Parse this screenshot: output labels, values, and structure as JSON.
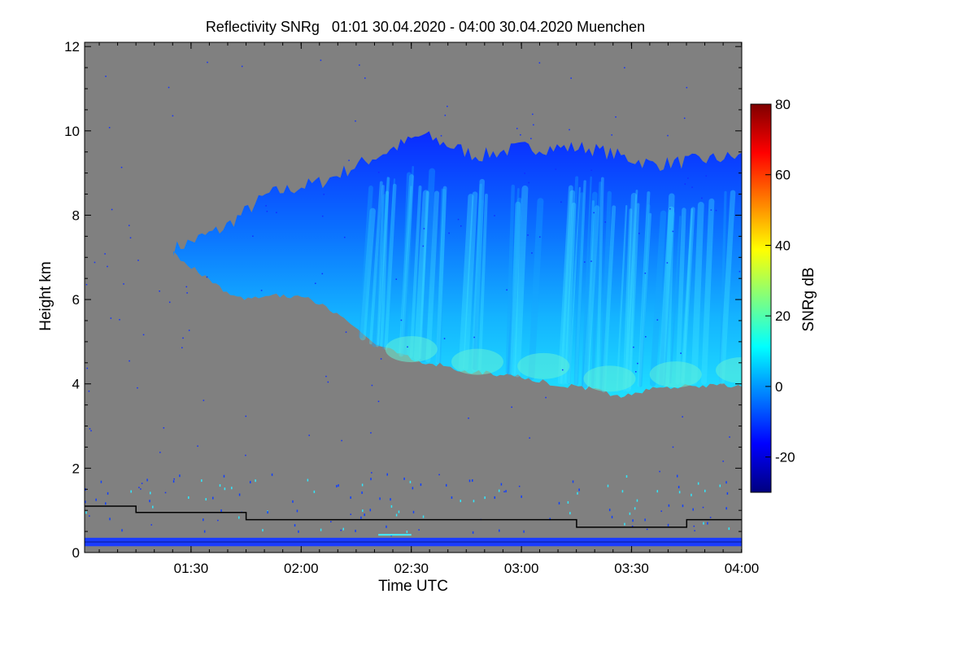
{
  "chart_data": {
    "type": "heatmap",
    "title": "Reflectivity SNRg   01:01 30.04.2020 - 04:00 30.04.2020 Muenchen",
    "xlabel": "Time UTC",
    "ylabel": "Height km",
    "xlim_hours": [
      1.0167,
      4.0
    ],
    "ylim": [
      0,
      12.1
    ],
    "x_ticks": [
      {
        "value": 1.5,
        "label": "01:30"
      },
      {
        "value": 2.0,
        "label": "02:00"
      },
      {
        "value": 2.5,
        "label": "02:30"
      },
      {
        "value": 3.0,
        "label": "03:00"
      },
      {
        "value": 3.5,
        "label": "03:30"
      },
      {
        "value": 4.0,
        "label": "04:00"
      }
    ],
    "y_ticks": [
      {
        "value": 0,
        "label": "0"
      },
      {
        "value": 2,
        "label": "2"
      },
      {
        "value": 4,
        "label": "4"
      },
      {
        "value": 6,
        "label": "6"
      },
      {
        "value": 8,
        "label": "8"
      },
      {
        "value": 10,
        "label": "10"
      },
      {
        "value": 12,
        "label": "12"
      }
    ],
    "colorbar": {
      "label": "SNRg dB",
      "range": [
        -30,
        80
      ],
      "ticks": [
        {
          "value": -20,
          "label": "-20"
        },
        {
          "value": 0,
          "label": "0"
        },
        {
          "value": 20,
          "label": "20"
        },
        {
          "value": 40,
          "label": "40"
        },
        {
          "value": 60,
          "label": "60"
        },
        {
          "value": 80,
          "label": "80"
        }
      ],
      "colors": [
        "#00007f",
        "#0000ff",
        "#007fff",
        "#00ffff",
        "#7fff7f",
        "#ffff00",
        "#ff7f00",
        "#ff0000",
        "#7f0000"
      ]
    },
    "background_color": "#808080",
    "cloud": {
      "top_km": [
        {
          "t": 1.42,
          "h": 7.2
        },
        {
          "t": 1.65,
          "h": 7.7
        },
        {
          "t": 1.85,
          "h": 8.5
        },
        {
          "t": 2.1,
          "h": 8.8
        },
        {
          "t": 2.3,
          "h": 9.3
        },
        {
          "t": 2.55,
          "h": 9.9
        },
        {
          "t": 2.8,
          "h": 9.4
        },
        {
          "t": 3.0,
          "h": 9.6
        },
        {
          "t": 3.3,
          "h": 9.6
        },
        {
          "t": 3.6,
          "h": 9.2
        },
        {
          "t": 3.8,
          "h": 9.3
        },
        {
          "t": 4.0,
          "h": 9.4
        }
      ],
      "base_km": [
        {
          "t": 1.42,
          "h": 7.1
        },
        {
          "t": 1.65,
          "h": 6.2
        },
        {
          "t": 1.75,
          "h": 6.0
        },
        {
          "t": 1.9,
          "h": 6.1
        },
        {
          "t": 2.05,
          "h": 6.0
        },
        {
          "t": 2.2,
          "h": 5.5
        },
        {
          "t": 2.35,
          "h": 4.9
        },
        {
          "t": 2.5,
          "h": 4.6
        },
        {
          "t": 2.75,
          "h": 4.3
        },
        {
          "t": 2.95,
          "h": 4.2
        },
        {
          "t": 3.15,
          "h": 4.0
        },
        {
          "t": 3.3,
          "h": 3.9
        },
        {
          "t": 3.45,
          "h": 3.7
        },
        {
          "t": 3.6,
          "h": 3.9
        },
        {
          "t": 3.8,
          "h": 3.95
        },
        {
          "t": 4.0,
          "h": 3.95
        }
      ],
      "core_km": [
        {
          "t": 2.5,
          "h": 4.9
        },
        {
          "t": 2.8,
          "h": 4.6
        },
        {
          "t": 3.1,
          "h": 4.5
        },
        {
          "t": 3.4,
          "h": 4.2
        },
        {
          "t": 3.7,
          "h": 4.3
        },
        {
          "t": 4.0,
          "h": 4.4
        }
      ]
    },
    "boundary_layer_line": [
      {
        "t": 1.0167,
        "h": 1.1
      },
      {
        "t": 1.25,
        "h": 1.1
      },
      {
        "t": 1.25,
        "h": 0.95
      },
      {
        "t": 1.75,
        "h": 0.95
      },
      {
        "t": 1.75,
        "h": 0.78
      },
      {
        "t": 3.25,
        "h": 0.78
      },
      {
        "t": 3.25,
        "h": 0.6
      },
      {
        "t": 3.75,
        "h": 0.6
      },
      {
        "t": 3.75,
        "h": 0.78
      },
      {
        "t": 4.0,
        "h": 0.78
      }
    ],
    "ground_clutter_km": [
      0.15,
      0.35
    ]
  }
}
